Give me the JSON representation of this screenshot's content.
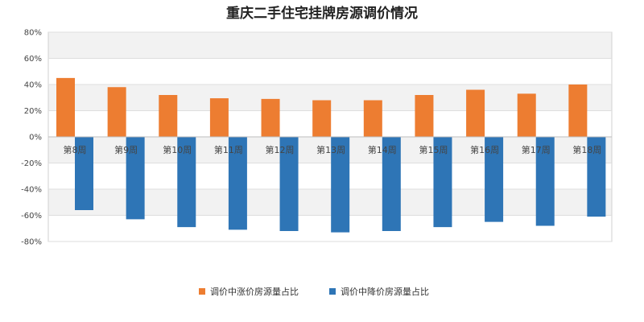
{
  "chart_data": {
    "type": "bar",
    "title": "重庆二手住宅挂牌房源调价情况",
    "categories": [
      "第8周",
      "第9周",
      "第10周",
      "第11周",
      "第12周",
      "第13周",
      "第14周",
      "第15周",
      "第16周",
      "第17周",
      "第18周"
    ],
    "series": [
      {
        "name": "调价中涨价房源量占比",
        "color": "#ED7D31",
        "values": [
          45,
          38,
          32,
          29.5,
          29,
          28,
          28,
          32,
          36,
          33,
          40
        ]
      },
      {
        "name": "调价中降价房源量占比",
        "color": "#2E75B6",
        "values": [
          -56,
          -63,
          -69,
          -71,
          -72,
          -73,
          -72,
          -69,
          -65,
          -68,
          -61
        ]
      }
    ],
    "y_ticks": [
      "80%",
      "60%",
      "40%",
      "20%",
      "0%",
      "-20%",
      "-40%",
      "-60%",
      "-80%"
    ],
    "ylim": [
      -80,
      80
    ],
    "grid": true,
    "legend_position": "bottom"
  }
}
